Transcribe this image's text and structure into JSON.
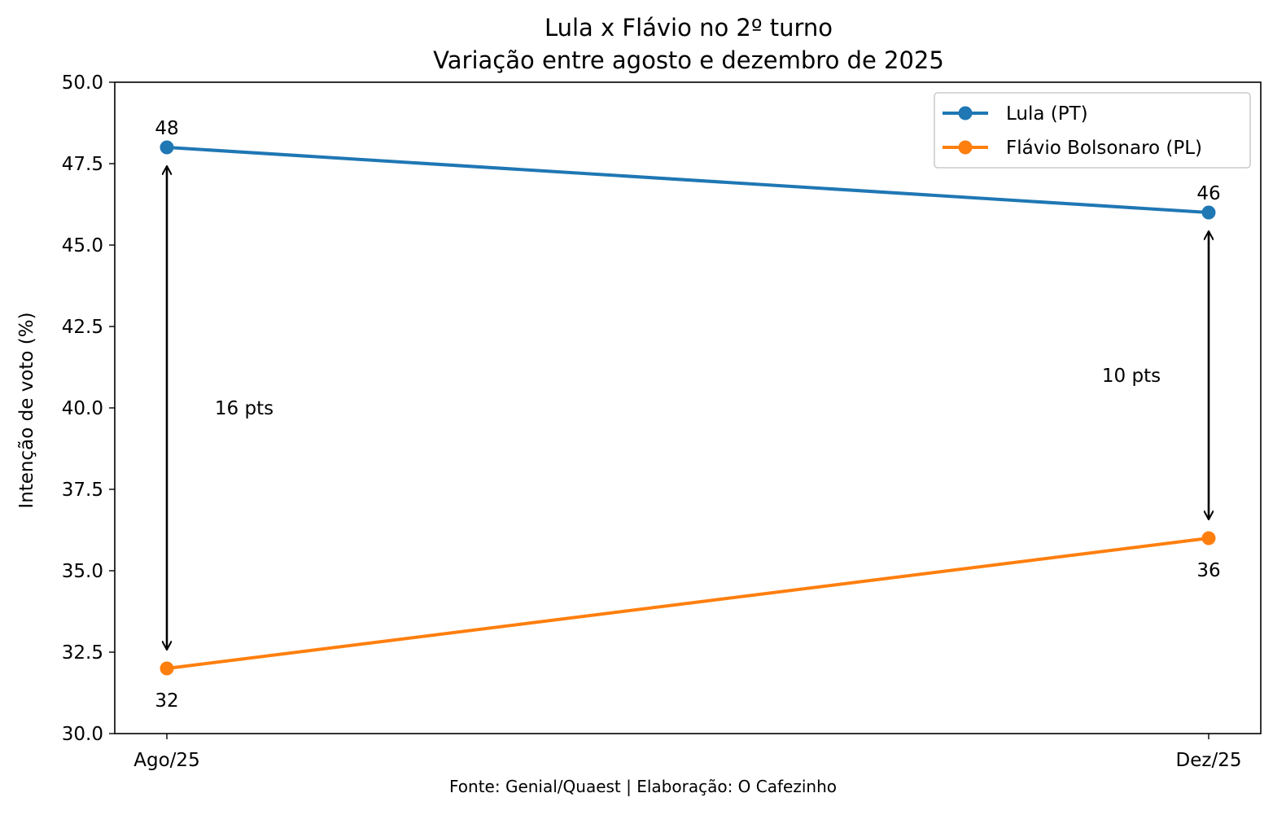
{
  "chart_data": {
    "type": "line",
    "title": "Lula x Flávio no 2º turno",
    "subtitle": "Variação entre agosto e dezembro de 2025",
    "xlabel": "",
    "ylabel": "Intenção de voto (%)",
    "categories": [
      "Ago/25",
      "Dez/25"
    ],
    "ylim": [
      30.0,
      50.0
    ],
    "yticks": [
      "30.0",
      "32.5",
      "35.0",
      "37.5",
      "40.0",
      "42.5",
      "45.0",
      "47.5",
      "50.0"
    ],
    "series": [
      {
        "name": "Lula (PT)",
        "values": [
          48,
          46
        ],
        "color": "#1f77b4",
        "labels": [
          "48",
          "46"
        ],
        "label_position": "above"
      },
      {
        "name": "Flávio Bolsonaro (PL)",
        "values": [
          32,
          36
        ],
        "color": "#ff7f0e",
        "labels": [
          "32",
          "36"
        ],
        "label_position": "below"
      }
    ],
    "annotations": [
      {
        "category": "Ago/25",
        "from": 32,
        "to": 48,
        "label": "16 pts",
        "label_y": 40.0
      },
      {
        "category": "Dez/25",
        "from": 36,
        "to": 46,
        "label": "10 pts",
        "label_y": 41.0
      }
    ],
    "grid": false,
    "legend_position": "top-right",
    "source": "Fonte: Genial/Quaest | Elaboração: O Cafezinho"
  }
}
